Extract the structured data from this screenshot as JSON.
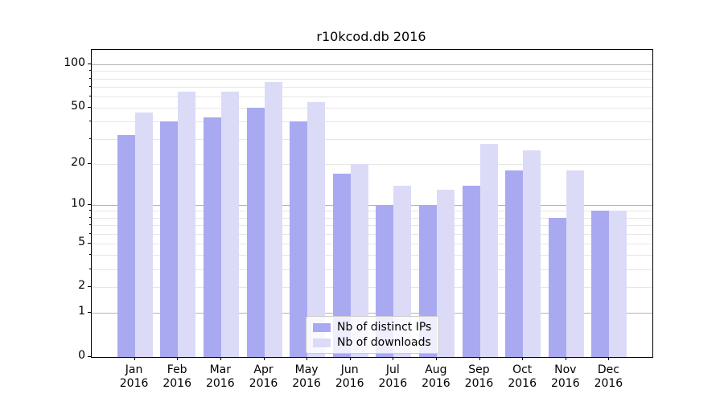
{
  "chart_data": {
    "type": "bar",
    "title": "r10kcod.db 2016",
    "x_year": "2016",
    "categories": [
      "Jan",
      "Feb",
      "Mar",
      "Apr",
      "May",
      "Jun",
      "Jul",
      "Aug",
      "Sep",
      "Oct",
      "Nov",
      "Dec"
    ],
    "series": [
      {
        "name": "Nb of distinct IPs",
        "color": "#a9a9f1",
        "values": [
          32,
          40,
          43,
          50,
          40,
          17,
          10,
          10,
          14,
          18,
          8,
          9
        ]
      },
      {
        "name": "Nb of downloads",
        "color": "#dbdbf8",
        "values": [
          46,
          65,
          65,
          76,
          55,
          20,
          14,
          13,
          28,
          25,
          18,
          9
        ]
      }
    ],
    "yscale": "log1p",
    "ylim": [
      0,
      126
    ],
    "y_ticks": [
      0,
      1,
      2,
      5,
      10,
      20,
      50,
      100
    ],
    "y_minor_ticks": [
      3,
      4,
      6,
      7,
      8,
      9,
      30,
      40,
      60,
      70,
      80,
      90
    ],
    "y_major_grid": [
      1,
      10,
      100
    ],
    "grid_on": true,
    "legend_position": "lower center",
    "colors": {
      "grid_major": "#b4b4b4",
      "grid_minor": "#e6e6e6",
      "axis": "#000000",
      "text": "#000000"
    }
  }
}
